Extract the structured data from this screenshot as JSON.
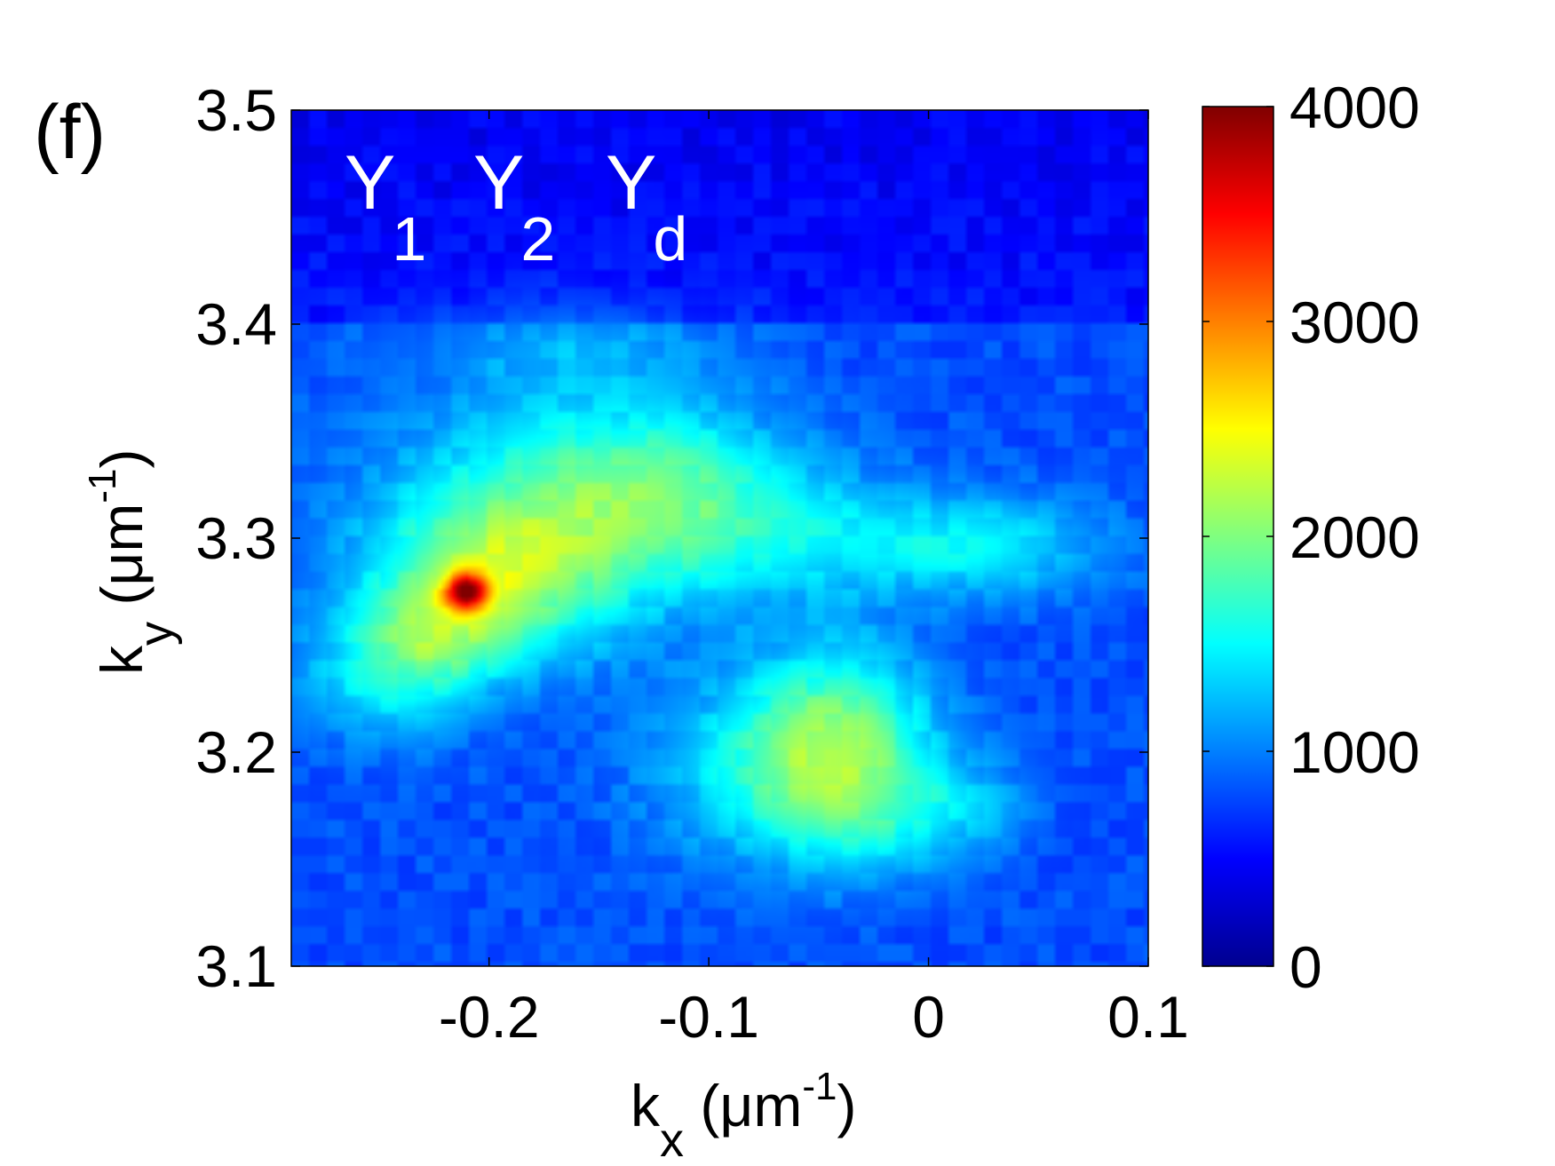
{
  "panel_label": "(f)",
  "chart_data": {
    "type": "heatmap",
    "title": "",
    "xlabel": {
      "main": "k",
      "sub": "x",
      "unit_open": " (μm",
      "unit_sup": "-1",
      "unit_close": ")"
    },
    "ylabel": {
      "main": "k",
      "sub": "y",
      "unit_open": " (μm",
      "unit_sup": "-1",
      "unit_close": ")"
    },
    "xlim": [
      -0.29,
      0.1
    ],
    "ylim": [
      3.1,
      3.5
    ],
    "xticks": [
      -0.2,
      -0.1,
      0,
      0.1
    ],
    "xtick_labels": [
      "-0.2",
      "-0.1",
      "0",
      "0.1"
    ],
    "yticks": [
      3.1,
      3.2,
      3.3,
      3.4,
      3.5
    ],
    "ytick_labels": [
      "3.1",
      "3.2",
      "3.3",
      "3.4",
      "3.5"
    ],
    "colormap": "jet",
    "colorbar": {
      "range": [
        0,
        4000
      ],
      "ticks": [
        0,
        1000,
        2000,
        3000,
        4000
      ],
      "tick_labels": [
        "0",
        "1000",
        "2000",
        "3000",
        "4000"
      ]
    },
    "background_level": 800,
    "upper_band_level": 450,
    "features": [
      {
        "kx": -0.21,
        "ky": 3.275,
        "sx": 0.007,
        "sy": 0.006,
        "amp": 1900
      },
      {
        "kx": -0.2,
        "ky": 3.28,
        "sx": 0.035,
        "sy": 0.025,
        "amp": 900
      },
      {
        "kx": -0.23,
        "ky": 3.253,
        "sx": 0.025,
        "sy": 0.018,
        "amp": 700
      },
      {
        "kx": -0.17,
        "ky": 3.31,
        "sx": 0.06,
        "sy": 0.04,
        "amp": 750
      },
      {
        "kx": -0.12,
        "ky": 3.33,
        "sx": 0.045,
        "sy": 0.025,
        "amp": 550
      },
      {
        "kx": -0.05,
        "ky": 3.3,
        "sx": 0.07,
        "sy": 0.02,
        "amp": 500
      },
      {
        "kx": 0.03,
        "ky": 3.295,
        "sx": 0.04,
        "sy": 0.015,
        "amp": 400
      },
      {
        "kx": -0.25,
        "ky": 3.23,
        "sx": 0.03,
        "sy": 0.02,
        "amp": 450
      },
      {
        "kx": -0.04,
        "ky": 3.21,
        "sx": 0.03,
        "sy": 0.03,
        "amp": 900
      },
      {
        "kx": -0.07,
        "ky": 3.19,
        "sx": 0.04,
        "sy": 0.03,
        "amp": 650
      },
      {
        "kx": -0.02,
        "ky": 3.17,
        "sx": 0.03,
        "sy": 0.02,
        "amp": 450
      },
      {
        "kx": 0.02,
        "ky": 3.175,
        "sx": 0.02,
        "sy": 0.015,
        "amp": 250
      },
      {
        "kx": -0.16,
        "ky": 3.39,
        "sx": 0.05,
        "sy": 0.015,
        "amp": 300
      }
    ],
    "annotations": [
      {
        "main": "Y",
        "sub": "1"
      },
      {
        "main": "Y",
        "sub": "2"
      },
      {
        "main": "Y",
        "sub": "d"
      }
    ]
  }
}
